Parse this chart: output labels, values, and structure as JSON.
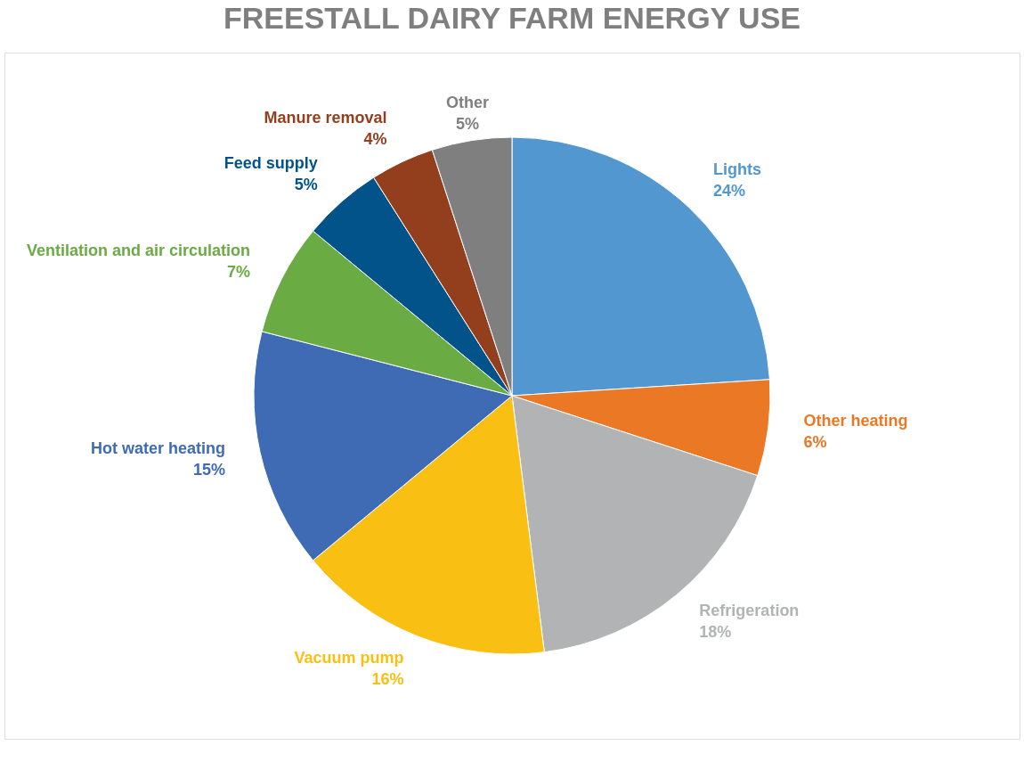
{
  "chart_data": {
    "type": "pie",
    "title": "FREESTALL DAIRY FARM ENERGY USE",
    "categories": [
      "Lights",
      "Other heating",
      "Refrigeration",
      "Vacuum pump",
      "Hot water heating",
      "Ventilation and air circulation",
      "Feed supply",
      "Manure removal",
      "Other"
    ],
    "values": [
      24,
      6,
      18,
      16,
      15,
      7,
      5,
      4,
      5
    ],
    "value_labels": [
      "24%",
      "6%",
      "18%",
      "16%",
      "15%",
      "7%",
      "5%",
      "4%",
      "5%"
    ],
    "colors": [
      "#5297d0",
      "#ea7824",
      "#b2b3b5",
      "#f9bf13",
      "#3f6bb5",
      "#6aab44",
      "#01538a",
      "#933f1e",
      "#7f7f7f"
    ],
    "legend": false
  }
}
